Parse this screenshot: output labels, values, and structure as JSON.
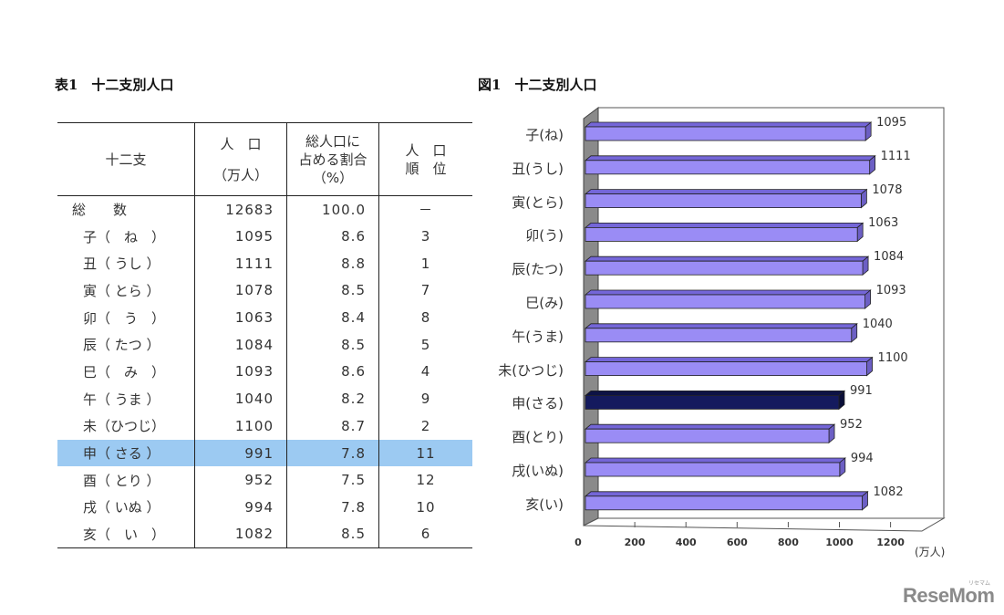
{
  "table": {
    "caption": "表1　十二支別人口",
    "headers": {
      "zodiac": "十二支",
      "population_line1": "人　口",
      "population_line2": "（万人）",
      "share_line1": "総人口に",
      "share_line2": "占める割合",
      "share_line3": "（%）",
      "rank_line1": "人　口",
      "rank_line2": "順　位"
    },
    "rows": [
      {
        "name": "総　　数",
        "population": "12683",
        "share": "100.0",
        "rank": "－",
        "total": true
      },
      {
        "name": "子（　ね　）",
        "population": "1095",
        "share": "8.6",
        "rank": "3"
      },
      {
        "name": "丑（ うし ）",
        "population": "1111",
        "share": "8.8",
        "rank": "1"
      },
      {
        "name": "寅（ とら ）",
        "population": "1078",
        "share": "8.5",
        "rank": "7"
      },
      {
        "name": "卯（　う　）",
        "population": "1063",
        "share": "8.4",
        "rank": "8"
      },
      {
        "name": "辰（ たつ ）",
        "population": "1084",
        "share": "8.5",
        "rank": "5"
      },
      {
        "name": "巳（　み　）",
        "population": "1093",
        "share": "8.6",
        "rank": "4"
      },
      {
        "name": "午（ うま ）",
        "population": "1040",
        "share": "8.2",
        "rank": "9"
      },
      {
        "name": "未（ひつじ）",
        "population": "1100",
        "share": "8.7",
        "rank": "2"
      },
      {
        "name": "申（ さる ）",
        "population": "991",
        "share": "7.8",
        "rank": "11",
        "highlight": true
      },
      {
        "name": "酉（ とり ）",
        "population": "952",
        "share": "7.5",
        "rank": "12"
      },
      {
        "name": "戌（ いぬ ）",
        "population": "994",
        "share": "7.8",
        "rank": "10"
      },
      {
        "name": "亥（　い　）",
        "population": "1082",
        "share": "8.5",
        "rank": "6"
      }
    ],
    "highlight_color": "#9ccaf2"
  },
  "chart_data": {
    "type": "bar",
    "orientation": "horizontal",
    "style": "3d",
    "title": "図1　十二支別人口",
    "categories": [
      "子(ね)",
      "丑(うし)",
      "寅(とら)",
      "卯(う)",
      "辰(たつ)",
      "巳(み)",
      "午(うま)",
      "未(ひつじ)",
      "申(さる)",
      "酉(とり)",
      "戌(いぬ)",
      "亥(い)"
    ],
    "values": [
      1095,
      1111,
      1078,
      1063,
      1084,
      1093,
      1040,
      1100,
      991,
      952,
      994,
      1082
    ],
    "value_labels": [
      "1095",
      "1111",
      "1078",
      "1063",
      "1084",
      "1093",
      "1040",
      "1100",
      "991",
      "952",
      "994",
      "1082"
    ],
    "highlight_index": 8,
    "xlabel": "(万人)",
    "ylabel": "",
    "xlim": [
      0,
      1200
    ],
    "xticks": [
      "0",
      "200",
      "400",
      "600",
      "800",
      "1000",
      "1200"
    ],
    "grid": false,
    "legend": null,
    "colors": {
      "bar": "#9a8cf5",
      "bar_top": "#7466d8",
      "bar_side": "#6c5fc4",
      "highlight": "#141a5e",
      "wall": "#8a8a8a"
    }
  },
  "watermark": {
    "text": "ReseMom",
    "ruby": "リセマム"
  }
}
